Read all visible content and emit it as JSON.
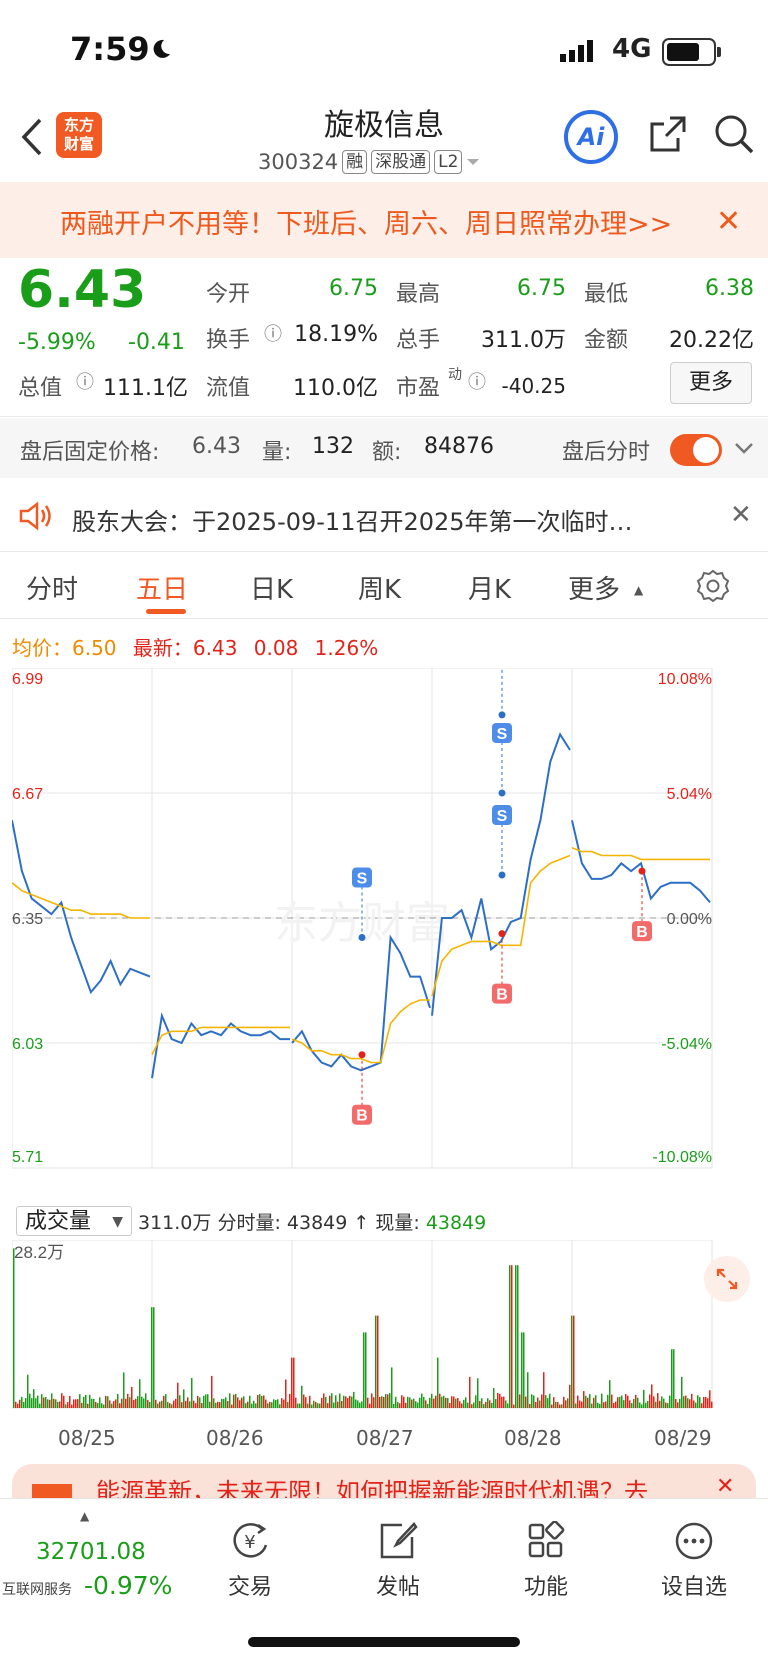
{
  "status_bar": {
    "time": "7:59",
    "network": "4G"
  },
  "header": {
    "app_logo": "东方\n财富",
    "stock_name": "旋极信息",
    "stock_code": "300324",
    "tags": [
      "融",
      "深股通",
      "L2"
    ],
    "ai_label": "Ai"
  },
  "banner": {
    "text": "两融开户不用等！下班后、周六、周日照常办理>>"
  },
  "quote": {
    "price": "6.43",
    "change_pct": "-5.99%",
    "change": "-0.41",
    "rows": [
      [
        {
          "label": "今开",
          "value": "6.75",
          "color": "green"
        },
        {
          "label": "最高",
          "value": "6.75",
          "color": "green"
        },
        {
          "label": "最低",
          "value": "6.38",
          "color": "green"
        }
      ],
      [
        {
          "label": "换手",
          "value": "18.19%",
          "color": "default"
        },
        {
          "label": "总手",
          "value": "311.0万",
          "color": "default"
        },
        {
          "label": "金额",
          "value": "20.22亿",
          "color": "default"
        }
      ],
      [
        {
          "label": "总值",
          "value": "111.1亿",
          "color": "default"
        },
        {
          "label": "流值",
          "value": "110.0亿",
          "color": "default"
        },
        {
          "label": "市盈",
          "value": "-40.25",
          "color": "default",
          "sup": "动"
        }
      ]
    ],
    "more_label": "更多"
  },
  "after_hours": {
    "label": "盘后固定价格:",
    "price": "6.43",
    "vol_label": "量:",
    "vol": "132",
    "amt_label": "额:",
    "amt": "84876",
    "toggle_label": "盘后分时",
    "toggle_on": true
  },
  "notice": {
    "text": "股东大会：于2025-09-11召开2025年第一次临时…"
  },
  "tabs": [
    {
      "label": "分时",
      "active": false
    },
    {
      "label": "五日",
      "active": true
    },
    {
      "label": "日K",
      "active": false
    },
    {
      "label": "周K",
      "active": false
    },
    {
      "label": "月K",
      "active": false
    },
    {
      "label": "更多",
      "active": false
    }
  ],
  "legend": {
    "avg_label": "均价：",
    "avg": "6.50",
    "latest_label": "最新：",
    "latest": "6.43",
    "change": "0.08",
    "pct": "1.26%"
  },
  "watermark": "东方财富",
  "chart_data": {
    "type": "line",
    "title": "",
    "days": [
      "08/25",
      "08/26",
      "08/27",
      "08/28",
      "08/29"
    ],
    "y_left_ticks": [
      "6.99",
      "6.67",
      "6.35",
      "6.03",
      "5.71"
    ],
    "y_right_ticks": [
      "10.08%",
      "5.04%",
      "0.00%",
      "-5.04%",
      "-10.08%"
    ],
    "ylim": [
      5.71,
      6.99
    ],
    "prev_close": 6.35,
    "series": [
      {
        "values": [
          6.6,
          6.47,
          6.4,
          6.38,
          6.36,
          6.39,
          6.3,
          6.23,
          6.16,
          6.19,
          6.24,
          6.18,
          6.22,
          6.21,
          6.2,
          5.94,
          6.1,
          6.04,
          6.03,
          6.08,
          6.05,
          6.06,
          6.05,
          6.08,
          6.06,
          6.05,
          6.05,
          6.06,
          6.04,
          6.04,
          6.03,
          6.06,
          6.01,
          5.98,
          5.97,
          6.0,
          5.97,
          5.96,
          5.97,
          5.98,
          6.3,
          6.26,
          6.2,
          6.2,
          6.12,
          6.1,
          6.35,
          6.35,
          6.37,
          6.3,
          6.4,
          6.27,
          6.29,
          6.34,
          6.35,
          6.5,
          6.6,
          6.75,
          6.82,
          6.78,
          6.6,
          6.49,
          6.45,
          6.45,
          6.46,
          6.49,
          6.47,
          6.49,
          6.4,
          6.43,
          6.44,
          6.44,
          6.44,
          6.42,
          6.39
        ]
      },
      {
        "values": [
          6.44,
          6.42,
          6.41,
          6.4,
          6.39,
          6.38,
          6.37,
          6.37,
          6.36,
          6.36,
          6.36,
          6.36,
          6.35,
          6.35,
          6.35,
          6.0,
          6.05,
          6.06,
          6.06,
          6.06,
          6.07,
          6.07,
          6.07,
          6.07,
          6.07,
          6.07,
          6.07,
          6.07,
          6.07,
          6.07,
          6.04,
          6.03,
          6.01,
          6.01,
          6.0,
          6.0,
          5.99,
          5.99,
          5.98,
          5.98,
          6.08,
          6.11,
          6.13,
          6.14,
          6.14,
          6.15,
          6.24,
          6.27,
          6.28,
          6.29,
          6.29,
          6.29,
          6.28,
          6.28,
          6.28,
          6.44,
          6.47,
          6.49,
          6.5,
          6.51,
          6.53,
          6.52,
          6.52,
          6.51,
          6.51,
          6.51,
          6.51,
          6.5,
          6.5,
          6.5,
          6.5,
          6.5,
          6.5,
          6.5,
          6.5
        ]
      }
    ],
    "trades": [
      {
        "type": "B",
        "day": 2,
        "price": 6.0
      },
      {
        "type": "S",
        "day": 2,
        "price": 6.3
      },
      {
        "type": "S",
        "day": 3,
        "price": 6.46
      },
      {
        "type": "B",
        "day": 3,
        "price": 6.31
      },
      {
        "type": "S",
        "day": 3,
        "price": 6.67
      },
      {
        "type": "S",
        "day": 3,
        "price": 6.87
      },
      {
        "type": "B",
        "day": 4,
        "price": 6.47
      }
    ]
  },
  "volume": {
    "selector_label": "成交量",
    "info_total": "311.0万",
    "info_fs_label": "分时量:",
    "info_fs": "43849",
    "info_now_label": "现量:",
    "info_now": "43849",
    "max_label": "28.2万"
  },
  "ad": {
    "text": "能源革新，未来无限！如何把握新能源时代机遇？去"
  },
  "nav": {
    "index_value": "32701.08",
    "index_name": "互联网服务",
    "index_pct": "-0.97%",
    "items": [
      {
        "label": "交易",
        "icon": "yen-swap-icon"
      },
      {
        "label": "发帖",
        "icon": "edit-icon"
      },
      {
        "label": "功能",
        "icon": "grid-icon"
      },
      {
        "label": "设自选",
        "icon": "dots-icon"
      }
    ]
  }
}
